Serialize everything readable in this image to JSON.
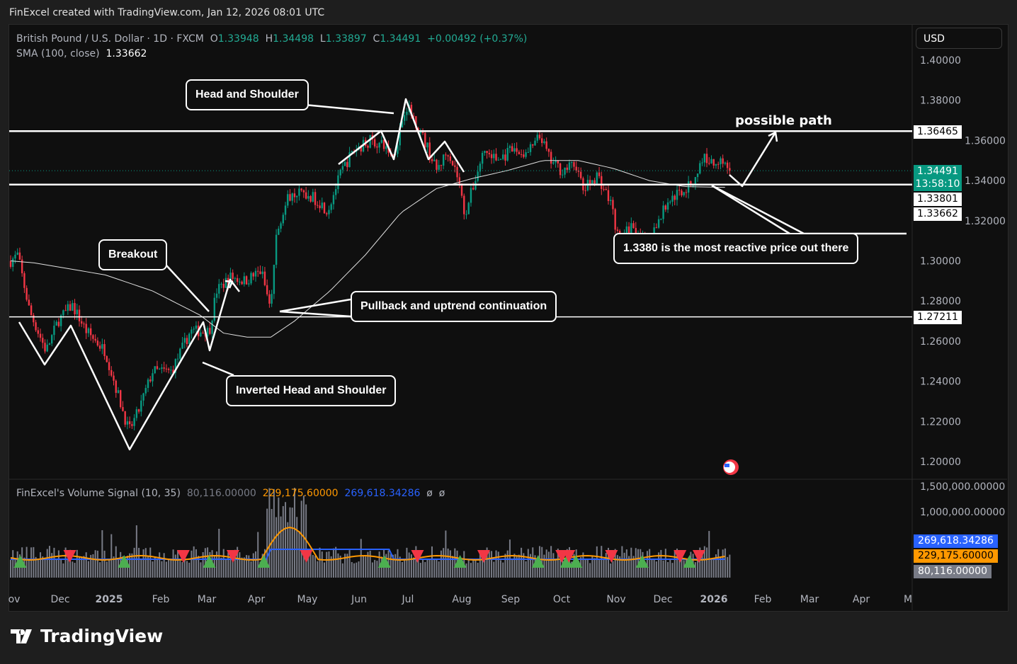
{
  "header": "FinExcel created with TradingView.com, Jan 12, 2026 08:01 UTC",
  "legend": {
    "symbol": "British Pound / U.S. Dollar · 1D · FXCM",
    "o_label": "O",
    "o": "1.33948",
    "h_label": "H",
    "h": "1.34498",
    "l_label": "L",
    "l": "1.33897",
    "c_label": "C",
    "c": "1.34491",
    "change": "+0.00492 (+0.37%)",
    "sma_label": "SMA (100, close)",
    "sma": "1.33662"
  },
  "currency": "USD",
  "price_labels": {
    "resistance": "1.36465",
    "last": "1.34491",
    "countdown": "13:58:10",
    "support": "1.33801",
    "sma": "1.33662",
    "lower": "1.27211"
  },
  "volume_labels": {
    "slow": "269,618.34286",
    "fast": "229,175.60000",
    "volume": "80,116.00000"
  },
  "volume_legend": {
    "name": "FinExcel's Volume Signal (10, 35)",
    "v": "80,116.00000",
    "fast": "229,175.60000",
    "slow": "269,618.34286",
    "e1": "ø",
    "e2": "ø"
  },
  "annotations": {
    "head_shoulder": "Head and Shoulder",
    "possible_path": "possible path",
    "reactive": "1.3380 is the most reactive price out there",
    "breakout": "Breakout",
    "pullback": "Pullback and uptrend continuation",
    "inverted": "Inverted Head and Shoulder"
  },
  "brand": "TradingView",
  "colors": {
    "up": "#089981",
    "down": "#f23645",
    "fast": "#ff9800",
    "slow": "#2962ff",
    "accent": "#089981"
  },
  "chart_data": {
    "type": "candlestick",
    "price_axis": {
      "ticks": [
        "1.40000",
        "1.38000",
        "1.36000",
        "1.34000",
        "1.32000",
        "1.30000",
        "1.28000",
        "1.26000",
        "1.24000",
        "1.22000",
        "1.20000"
      ],
      "ylim": [
        1.2,
        1.4
      ]
    },
    "volume_axis": {
      "ticks": [
        "1,500,000.00000",
        "1,000,000.00000"
      ]
    },
    "time_axis": [
      "ov",
      "Dec",
      "2025",
      "Feb",
      "Mar",
      "Apr",
      "May",
      "Jun",
      "Jul",
      "Aug",
      "Sep",
      "Oct",
      "Nov",
      "Dec",
      "2026",
      "Feb",
      "Mar",
      "Apr",
      "M"
    ],
    "horizontal_levels": [
      1.36465,
      1.33801,
      1.27211
    ],
    "close_anchors": [
      [
        0,
        1.3
      ],
      [
        0.03,
        1.303
      ],
      [
        0.08,
        1.275
      ],
      [
        0.15,
        1.255
      ],
      [
        0.2,
        1.27
      ],
      [
        0.26,
        1.278
      ],
      [
        0.32,
        1.265
      ],
      [
        0.4,
        1.255
      ],
      [
        0.45,
        1.235
      ],
      [
        0.5,
        1.215
      ],
      [
        0.54,
        1.225
      ],
      [
        0.6,
        1.245
      ],
      [
        0.68,
        1.245
      ],
      [
        0.76,
        1.265
      ],
      [
        0.84,
        1.265
      ],
      [
        0.87,
        1.285
      ],
      [
        0.93,
        1.292
      ],
      [
        0.99,
        1.29
      ],
      [
        1.06,
        1.295
      ],
      [
        1.1,
        1.275
      ],
      [
        1.12,
        1.31
      ],
      [
        1.15,
        1.325
      ],
      [
        1.19,
        1.335
      ],
      [
        1.25,
        1.333
      ],
      [
        1.3,
        1.33
      ],
      [
        1.34,
        1.325
      ],
      [
        1.4,
        1.345
      ],
      [
        1.45,
        1.355
      ],
      [
        1.52,
        1.36
      ],
      [
        1.58,
        1.357
      ],
      [
        1.62,
        1.352
      ],
      [
        1.67,
        1.378
      ],
      [
        1.71,
        1.37
      ],
      [
        1.76,
        1.357
      ],
      [
        1.8,
        1.345
      ],
      [
        1.85,
        1.355
      ],
      [
        1.89,
        1.342
      ],
      [
        1.92,
        1.323
      ],
      [
        1.95,
        1.335
      ],
      [
        2.0,
        1.355
      ],
      [
        2.06,
        1.35
      ],
      [
        2.12,
        1.355
      ],
      [
        2.18,
        1.353
      ],
      [
        2.24,
        1.362
      ],
      [
        2.28,
        1.35
      ],
      [
        2.33,
        1.345
      ],
      [
        2.39,
        1.348
      ],
      [
        2.42,
        1.335
      ],
      [
        2.48,
        1.343
      ],
      [
        2.54,
        1.328
      ],
      [
        2.57,
        1.31
      ],
      [
        2.63,
        1.318
      ],
      [
        2.69,
        1.308
      ],
      [
        2.73,
        1.318
      ],
      [
        2.78,
        1.33
      ],
      [
        2.84,
        1.335
      ],
      [
        2.88,
        1.338
      ],
      [
        2.93,
        1.352
      ],
      [
        2.97,
        1.348
      ],
      [
        3.0,
        1.352
      ],
      [
        3.04,
        1.3449
      ]
    ],
    "sma_anchors": [
      [
        0,
        1.3
      ],
      [
        0.1,
        1.299
      ],
      [
        0.4,
        1.293
      ],
      [
        0.6,
        1.285
      ],
      [
        0.8,
        1.273
      ],
      [
        0.9,
        1.264
      ],
      [
        1.0,
        1.262
      ],
      [
        1.1,
        1.262
      ],
      [
        1.2,
        1.27
      ],
      [
        1.35,
        1.285
      ],
      [
        1.5,
        1.303
      ],
      [
        1.65,
        1.324
      ],
      [
        1.8,
        1.336
      ],
      [
        1.95,
        1.341
      ],
      [
        2.1,
        1.345
      ],
      [
        2.25,
        1.35
      ],
      [
        2.4,
        1.35
      ],
      [
        2.55,
        1.346
      ],
      [
        2.7,
        1.34
      ],
      [
        2.85,
        1.337
      ],
      [
        3.04,
        1.3366
      ]
    ],
    "signals_up": [
      0.04,
      0.48,
      0.84,
      1.07,
      1.58,
      1.9,
      2.23,
      2.35,
      2.39,
      2.67,
      2.87
    ],
    "signals_down": [
      0.25,
      0.73,
      0.94,
      1.25,
      1.72,
      2.0,
      2.33,
      2.36,
      2.54,
      2.83,
      2.91
    ]
  }
}
